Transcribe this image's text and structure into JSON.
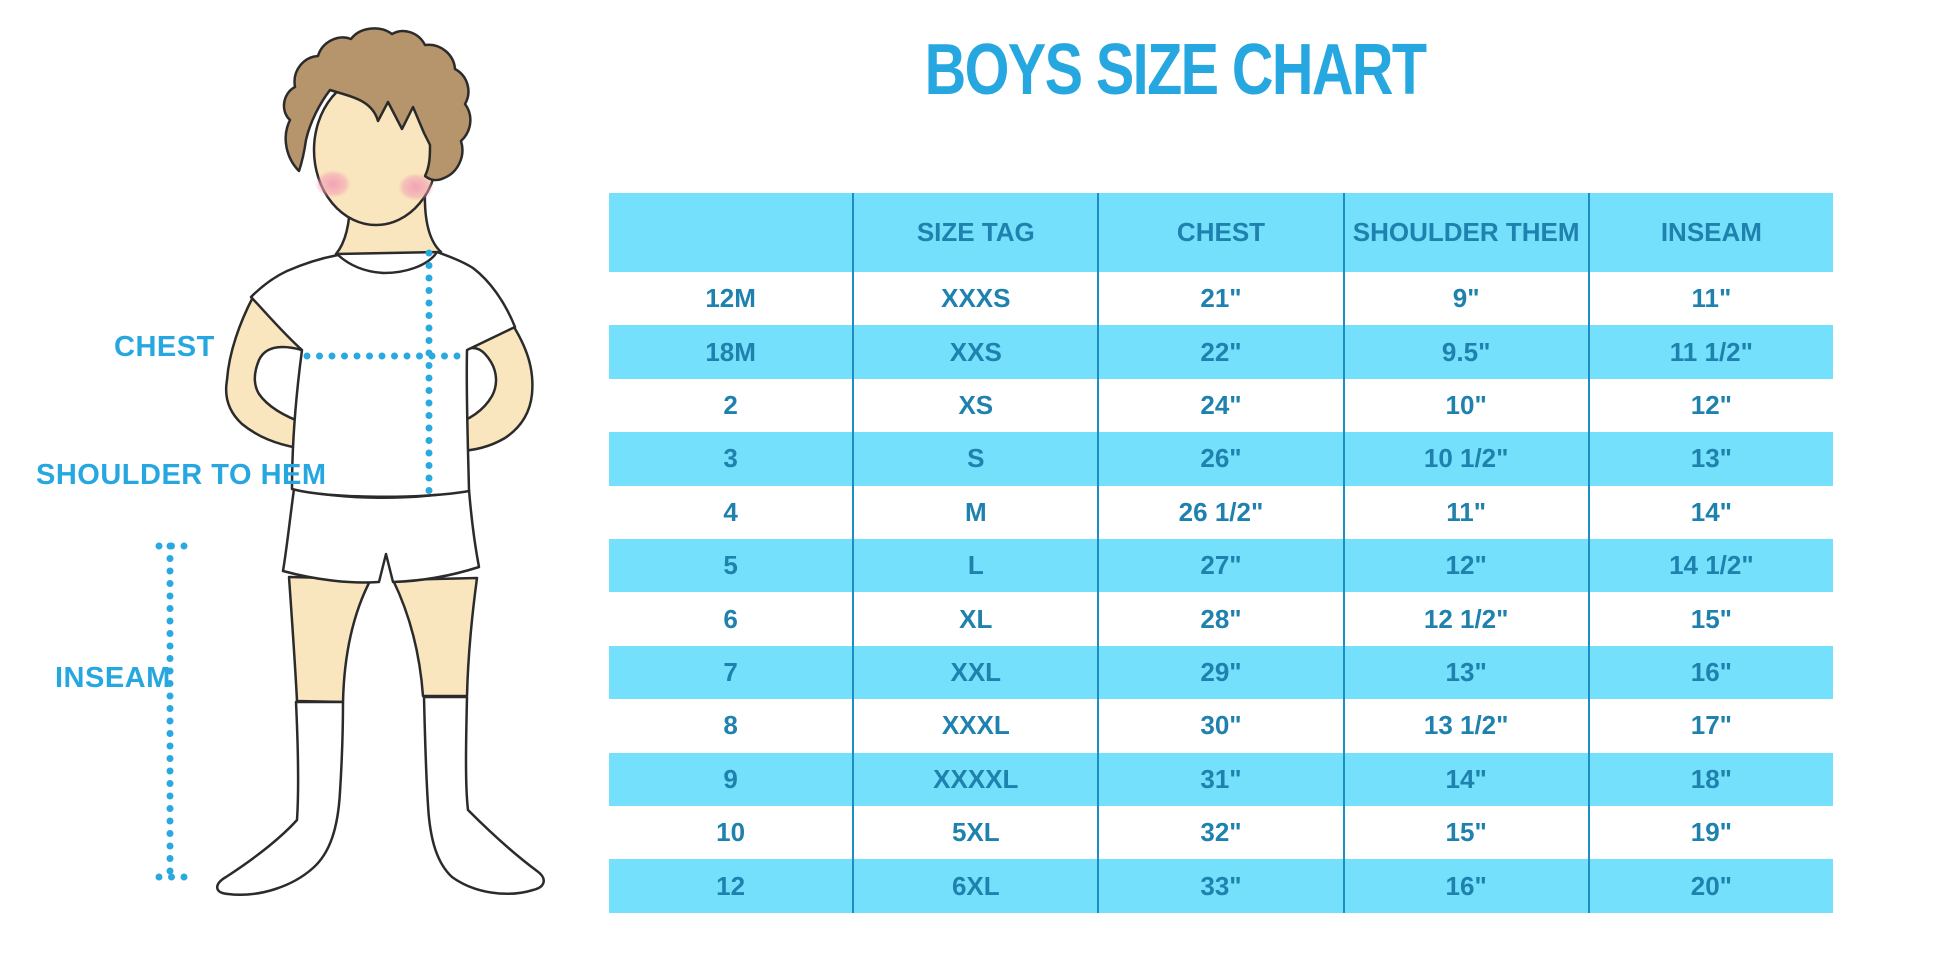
{
  "page": {
    "title": "BOYS SIZE CHART"
  },
  "figure_labels": {
    "chest": "CHEST",
    "shoulder_to_hem": "SHOULDER TO HEM",
    "inseam": "INSEAM"
  },
  "colors": {
    "accent_blue": "#27a7e0",
    "table_text_blue": "#1f81ad",
    "row_highlight_blue": "#74e0fb",
    "divider_blue": "#1b8fc4",
    "skin": "#fae6be",
    "hair_brown": "#b6946c",
    "blush_pink": "#f2a7b8"
  },
  "chart_data": {
    "type": "table",
    "title": "BOYS SIZE CHART",
    "columns": [
      "",
      "SIZE TAG",
      "CHEST",
      "SHOULDER THEM",
      "INSEAM"
    ],
    "rows": [
      [
        "12M",
        "XXXS",
        "21\"",
        "9\"",
        "11\""
      ],
      [
        "18M",
        "XXS",
        "22\"",
        "9.5\"",
        "11 1/2\""
      ],
      [
        "2",
        "XS",
        "24\"",
        "10\"",
        "12\""
      ],
      [
        "3",
        "S",
        "26\"",
        "10 1/2\"",
        "13\""
      ],
      [
        "4",
        "M",
        "26 1/2\"",
        "11\"",
        "14\""
      ],
      [
        "5",
        "L",
        "27\"",
        "12\"",
        "14 1/2\""
      ],
      [
        "6",
        "XL",
        "28\"",
        "12 1/2\"",
        "15\""
      ],
      [
        "7",
        "XXL",
        "29\"",
        "13\"",
        "16\""
      ],
      [
        "8",
        "XXXL",
        "30\"",
        "13 1/2\"",
        "17\""
      ],
      [
        "9",
        "XXXXL",
        "31\"",
        "14\"",
        "18\""
      ],
      [
        "10",
        "5XL",
        "32\"",
        "15\"",
        "19\""
      ],
      [
        "12",
        "6XL",
        "33\"",
        "16\"",
        "20\""
      ]
    ],
    "row_striping": "alternating white / light-blue, header light-blue",
    "legend_position": "none",
    "grid": "vertical dividers only"
  }
}
